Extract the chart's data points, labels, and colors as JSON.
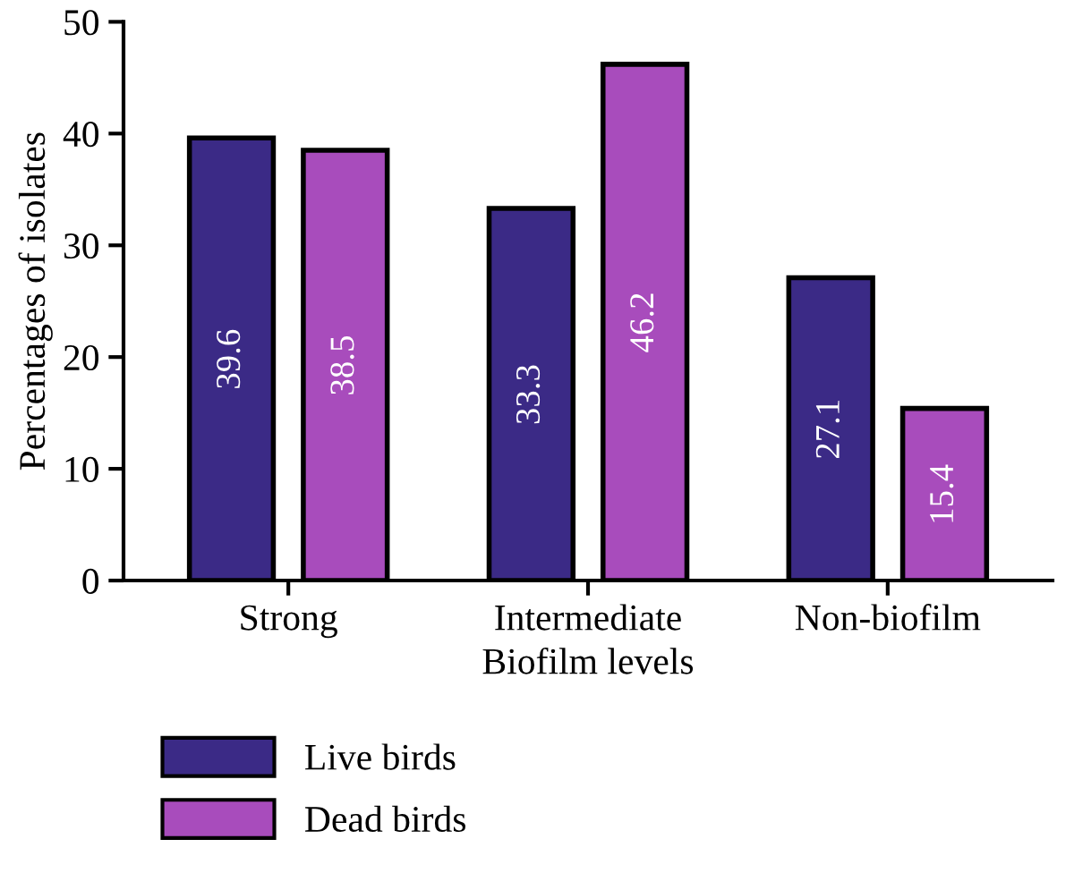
{
  "chart_data": {
    "type": "bar",
    "xlabel": "Biofilm levels",
    "ylabel": "Percentages of isolates",
    "categories": [
      "Strong",
      "Intermediate",
      "Non-biofilm"
    ],
    "series": [
      {
        "name": "Live birds",
        "color": "#3b2a86",
        "values": [
          39.6,
          33.3,
          27.1
        ]
      },
      {
        "name": "Dead birds",
        "color": "#a84cbc",
        "values": [
          38.5,
          46.2,
          15.4
        ]
      }
    ],
    "ylim": [
      0,
      50
    ],
    "yticks": [
      0,
      10,
      20,
      30,
      40,
      50
    ],
    "grid": false,
    "legend": "bottom",
    "data_labels": true
  }
}
